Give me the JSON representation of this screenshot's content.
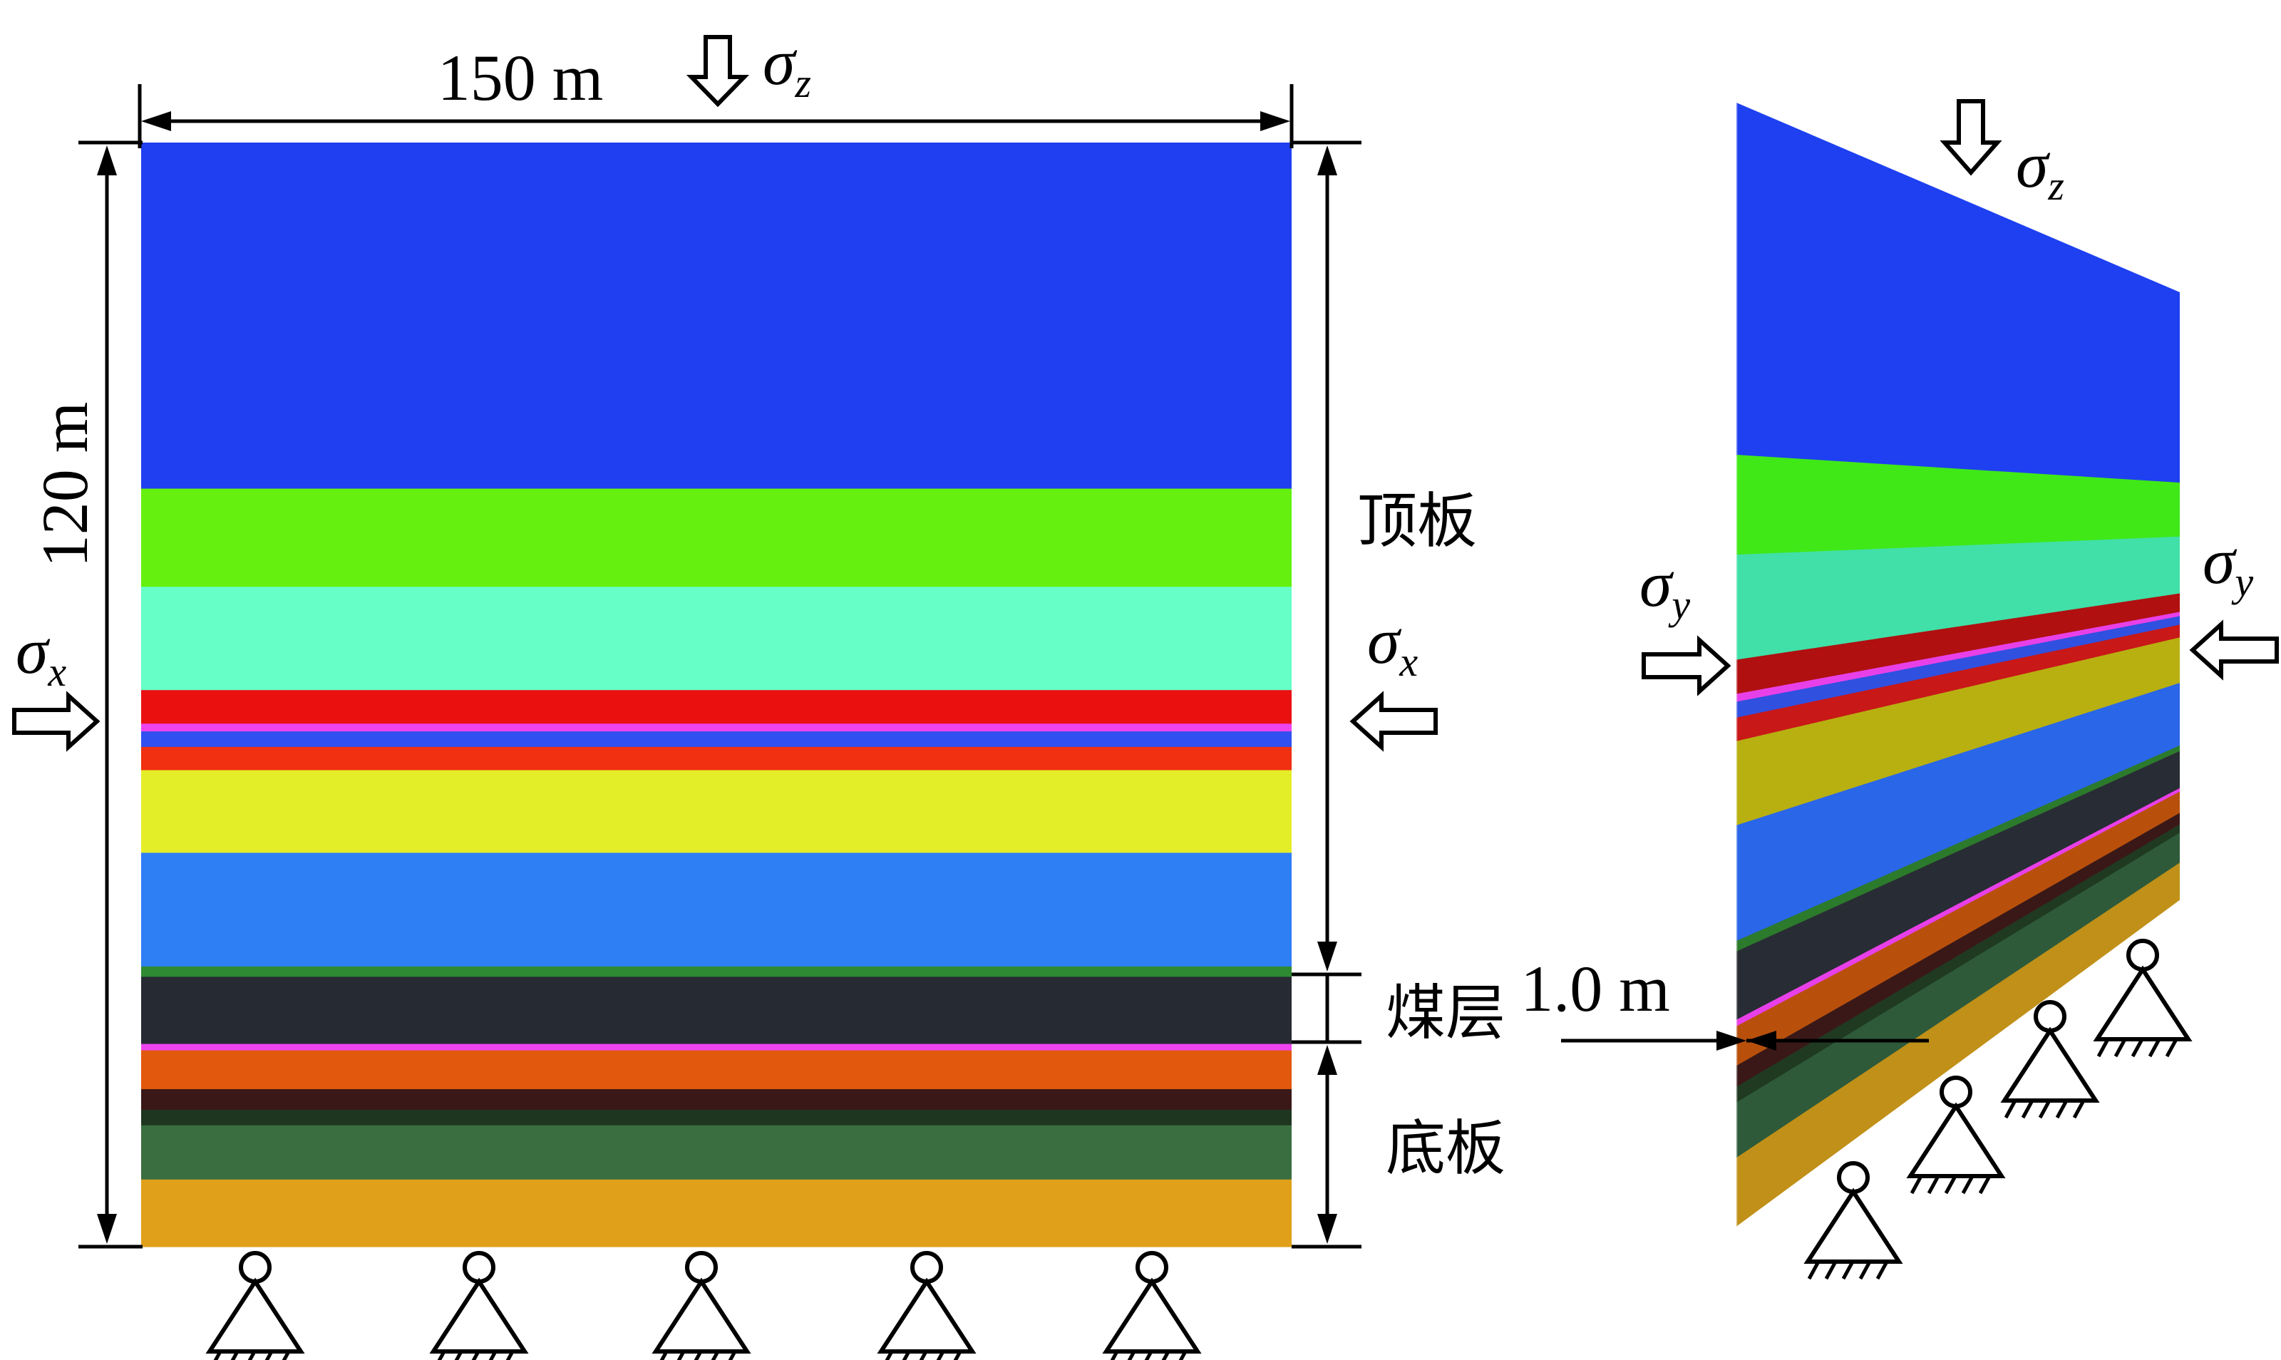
{
  "labels": {
    "width": "150 m",
    "height": "120 m",
    "thickness": "1.0 m",
    "roof": "顶板",
    "coal_seam": "煤层",
    "floor": "底板",
    "sigma_sym": "σ",
    "sub_z": "z",
    "sub_x": "x",
    "sub_y": "y"
  },
  "strata": [
    {
      "color": "#1f3ff0",
      "h": 26.8
    },
    {
      "color": "#66f00f",
      "h": 7.6
    },
    {
      "color": "#66ffc8",
      "h": 8.0
    },
    {
      "color": "#ea1010",
      "h": 2.6
    },
    {
      "color": "#ee44ee",
      "h": 0.6
    },
    {
      "color": "#3050f0",
      "h": 1.2
    },
    {
      "color": "#f03010",
      "h": 1.8
    },
    {
      "color": "#e4ee28",
      "h": 6.4
    },
    {
      "color": "#2e7ef4",
      "h": 8.8
    },
    {
      "color": "#2e8a33",
      "h": 0.8
    },
    {
      "color": "#262a33",
      "h": 5.2
    },
    {
      "color": "#ee44ee",
      "h": 0.5
    },
    {
      "color": "#e2580c",
      "h": 3.0
    },
    {
      "color": "#3a1818",
      "h": 1.6
    },
    {
      "color": "#1e3620",
      "h": 1.2
    },
    {
      "color": "#3a6e40",
      "h": 4.2
    },
    {
      "color": "#e0a01a",
      "h": 5.2
    }
  ],
  "strata_3d": [
    {
      "color": "#1e40f0",
      "h": 26.8
    },
    {
      "color": "#40e818",
      "h": 7.6
    },
    {
      "color": "#40e0a8",
      "h": 8.0
    },
    {
      "color": "#b01010",
      "h": 2.6
    },
    {
      "color": "#e840e8",
      "h": 0.6
    },
    {
      "color": "#3050e0",
      "h": 1.2
    },
    {
      "color": "#c81818",
      "h": 1.8
    },
    {
      "color": "#b8b010",
      "h": 6.4
    },
    {
      "color": "#2a66e8",
      "h": 8.8
    },
    {
      "color": "#2c7a2c",
      "h": 0.8
    },
    {
      "color": "#282c34",
      "h": 5.2
    },
    {
      "color": "#e840e8",
      "h": 0.5
    },
    {
      "color": "#b8500c",
      "h": 3.0
    },
    {
      "color": "#3a1818",
      "h": 1.6
    },
    {
      "color": "#203a22",
      "h": 1.2
    },
    {
      "color": "#2e5a3a",
      "h": 4.2
    },
    {
      "color": "#c09018",
      "h": 5.2
    }
  ]
}
